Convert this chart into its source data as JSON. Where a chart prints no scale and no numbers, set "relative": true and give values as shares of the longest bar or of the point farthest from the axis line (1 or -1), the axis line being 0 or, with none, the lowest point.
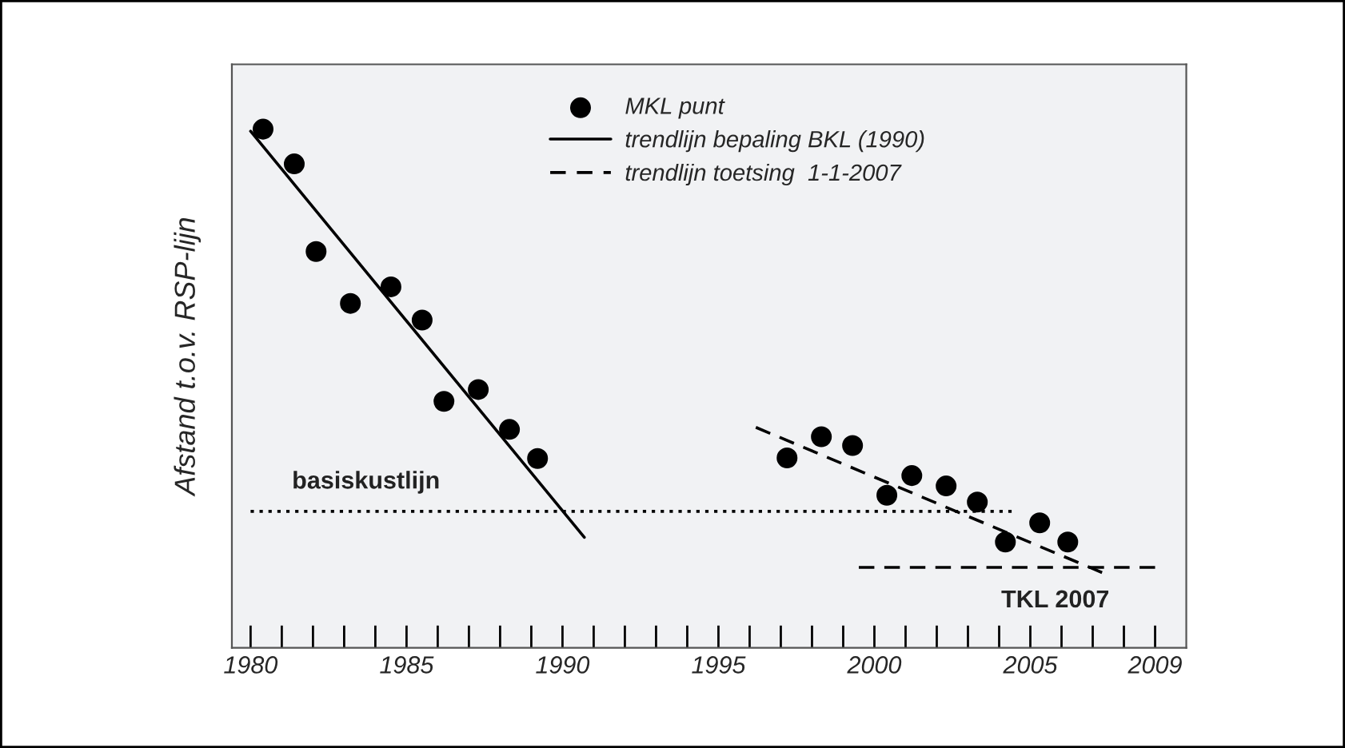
{
  "chart_data": {
    "type": "scatter",
    "relative": true,
    "ylabel": "Afstand t.o.v. RSP-lijn",
    "xlim": [
      1979.4,
      2010
    ],
    "xticks": [
      1980,
      {
        "value": 1981,
        "label": null
      },
      {
        "value": 1982,
        "label": null
      },
      {
        "value": 1983,
        "label": null
      },
      {
        "value": 1984,
        "label": null
      },
      1985,
      {
        "value": 1986,
        "label": null
      },
      {
        "value": 1987,
        "label": null
      },
      {
        "value": 1988,
        "label": null
      },
      {
        "value": 1989,
        "label": null
      },
      1990,
      {
        "value": 1991,
        "label": null
      },
      {
        "value": 1992,
        "label": null
      },
      {
        "value": 1993,
        "label": null
      },
      {
        "value": 1994,
        "label": null
      },
      1995,
      {
        "value": 1996,
        "label": null
      },
      {
        "value": 1997,
        "label": null
      },
      {
        "value": 1998,
        "label": null
      },
      {
        "value": 1999,
        "label": null
      },
      2000,
      {
        "value": 2001,
        "label": null
      },
      {
        "value": 2002,
        "label": null
      },
      {
        "value": 2003,
        "label": null
      },
      {
        "value": 2004,
        "label": null
      },
      2005,
      {
        "value": 2006,
        "label": null
      },
      {
        "value": 2007,
        "label": null
      },
      {
        "value": 2008,
        "label": null
      },
      2009
    ],
    "tick_labels": "x",
    "grid": false,
    "legend": "top",
    "series": [
      {
        "name": "MKL punt",
        "marker": "circle",
        "color": "#000000",
        "x": [
          1980.4,
          1981.4,
          1982.1,
          1983.2,
          1984.5,
          1985.5,
          1986.2,
          1987.3,
          1988.3,
          1989.2,
          1997.2,
          1998.3,
          1999.3,
          2000.4,
          2001.2,
          2002.3,
          2003.3,
          2004.2,
          2005.3,
          2006.2
        ],
        "values": [
          1.0,
          0.933,
          0.764,
          0.664,
          0.696,
          0.632,
          0.475,
          0.498,
          0.421,
          0.365,
          0.366,
          0.407,
          0.39,
          0.294,
          0.332,
          0.312,
          0.281,
          0.204,
          0.241,
          0.204
        ]
      },
      {
        "name": "trendlijn bepaling BKL (1990)",
        "type": "line",
        "line_style": "solid",
        "color": "#000000",
        "x": [
          1980,
          1990.7
        ],
        "values": [
          0.996,
          0.213
        ]
      },
      {
        "name": "trendlijn toetsing  1-1-2007",
        "type": "line",
        "line_style": "dashed",
        "color": "#000000",
        "x": [
          1996.2,
          2007.3
        ],
        "values": [
          0.425,
          0.145
        ]
      },
      {
        "type": "line",
        "line_style": "dotted",
        "color": "#000000",
        "x": [
          1980,
          2004.4
        ],
        "values": [
          0.263,
          0.263
        ]
      },
      {
        "type": "line",
        "line_style": "dashed",
        "color": "#000000",
        "x": [
          1999.5,
          2009
        ],
        "values": [
          0.155,
          0.155
        ]
      }
    ],
    "annotations": [
      {
        "text": "basiskustlijn",
        "x": 1983.7,
        "y": 0.263
      },
      {
        "text": "TKL 2007",
        "x": 2005.8,
        "y": 0.155
      }
    ]
  }
}
